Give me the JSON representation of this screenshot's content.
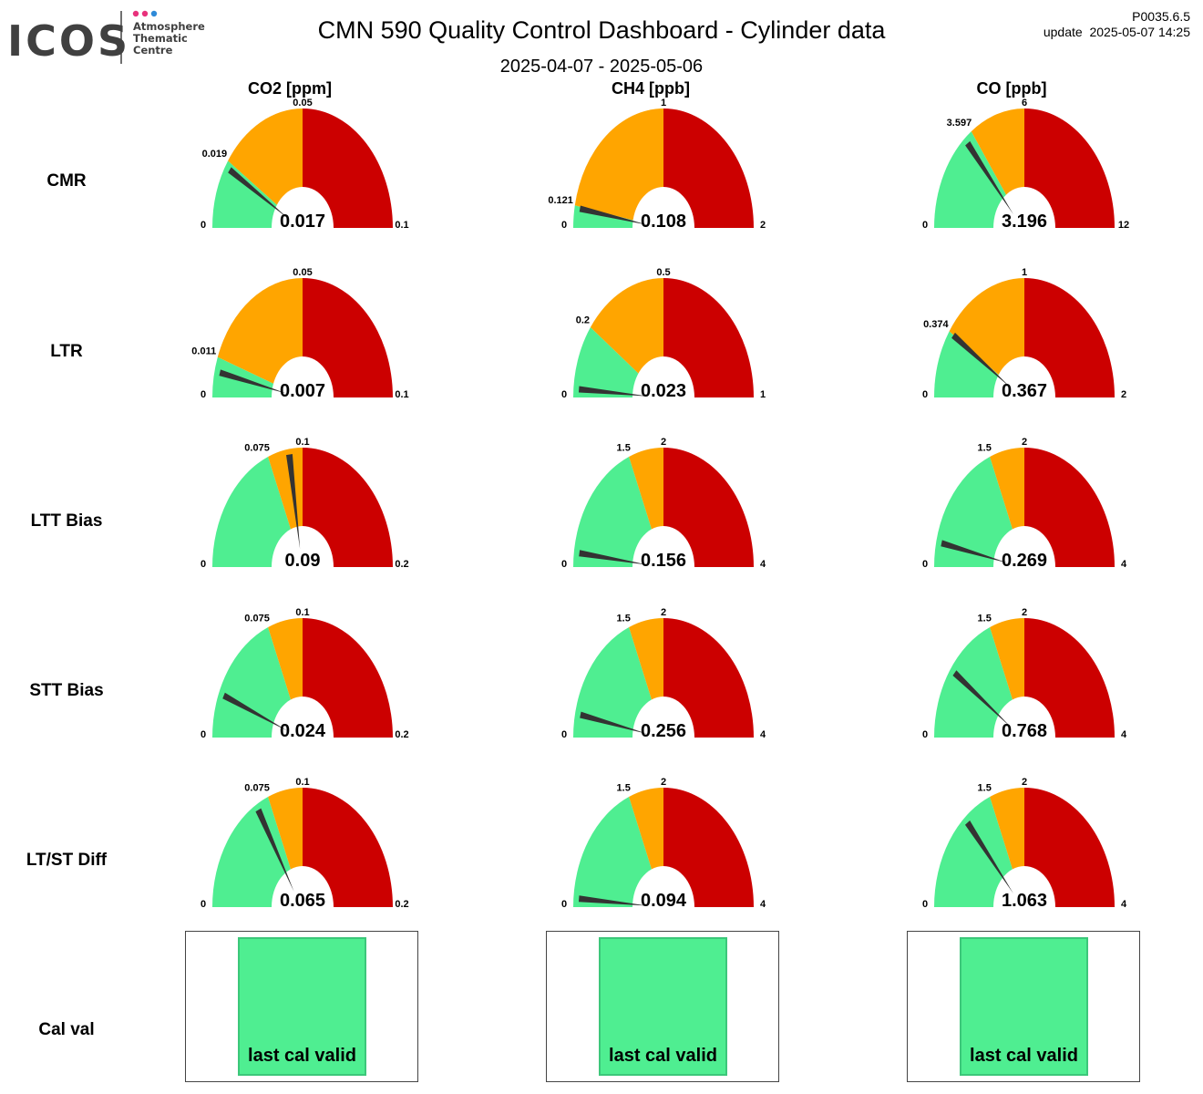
{
  "header": {
    "logo_text": "ICOS",
    "logo_subtitle_lines": [
      "Atmosphere",
      "Thematic",
      "Centre"
    ],
    "logo_dot_colors": [
      "#E8327C",
      "#E8327C",
      "#2F8AD8"
    ],
    "title": "CMN 590 Quality Control Dashboard - Cylinder data",
    "date_range": "2025-04-07 - 2025-05-06",
    "version": "P0035.6.5",
    "update": "update  2025-05-07 14:25"
  },
  "columns": [
    "CO2 [ppm]",
    "CH4 [ppb]",
    "CO [ppb]"
  ],
  "rows": [
    "CMR",
    "LTR",
    "LTT Bias",
    "STT Bias",
    "LT/ST Diff",
    "Cal val"
  ],
  "colors": {
    "green": "#4FEE91",
    "orange": "#FFA500",
    "red": "#CC0000",
    "needle": "#333333"
  },
  "chart_data": {
    "type": "gauge",
    "gauges": [
      {
        "row": "CMR",
        "col": "CO2 [ppm]",
        "min": 0,
        "threshold": 0.019,
        "warn": 0.05,
        "max": 0.1,
        "value": 0.017,
        "labels": {
          "min": "0",
          "threshold": "0.019",
          "warn": "0.05",
          "max": "0.1",
          "value": "0.017"
        }
      },
      {
        "row": "CMR",
        "col": "CH4 [ppb]",
        "min": 0,
        "threshold": 0.121,
        "warn": 1,
        "max": 2,
        "value": 0.108,
        "labels": {
          "min": "0",
          "threshold": "0.121",
          "warn": "1",
          "max": "2",
          "value": "0.108"
        }
      },
      {
        "row": "CMR",
        "col": "CO [ppb]",
        "min": 0,
        "threshold": 3.597,
        "warn": 6,
        "max": 12,
        "value": 3.196,
        "labels": {
          "min": "0",
          "threshold": "3.597",
          "warn": "6",
          "max": "12",
          "value": "3.196"
        }
      },
      {
        "row": "LTR",
        "col": "CO2 [ppm]",
        "min": 0,
        "threshold": 0.011,
        "warn": 0.05,
        "max": 0.1,
        "value": 0.007,
        "labels": {
          "min": "0",
          "threshold": "0.011",
          "warn": "0.05",
          "max": "0.1",
          "value": "0.007"
        }
      },
      {
        "row": "LTR",
        "col": "CH4 [ppb]",
        "min": 0,
        "threshold": 0.2,
        "warn": 0.5,
        "max": 1,
        "value": 0.023,
        "labels": {
          "min": "0",
          "threshold": "0.2",
          "warn": "0.5",
          "max": "1",
          "value": "0.023"
        }
      },
      {
        "row": "LTR",
        "col": "CO [ppb]",
        "min": 0,
        "threshold": 0.374,
        "warn": 1,
        "max": 2,
        "value": 0.367,
        "labels": {
          "min": "0",
          "threshold": "0.374",
          "warn": "1",
          "max": "2",
          "value": "0.367"
        }
      },
      {
        "row": "LTT Bias",
        "col": "CO2 [ppm]",
        "min": 0,
        "threshold": 0.075,
        "warn": 0.1,
        "max": 0.2,
        "value": 0.09,
        "labels": {
          "min": "0",
          "threshold": "0.075",
          "warn": "0.1",
          "max": "0.2",
          "value": "0.09"
        }
      },
      {
        "row": "LTT Bias",
        "col": "CH4 [ppb]",
        "min": 0,
        "threshold": 1.5,
        "warn": 2,
        "max": 4,
        "value": 0.156,
        "labels": {
          "min": "0",
          "threshold": "1.5",
          "warn": "2",
          "max": "4",
          "value": "0.156"
        }
      },
      {
        "row": "LTT Bias",
        "col": "CO [ppb]",
        "min": 0,
        "threshold": 1.5,
        "warn": 2,
        "max": 4,
        "value": 0.269,
        "labels": {
          "min": "0",
          "threshold": "1.5",
          "warn": "2",
          "max": "4",
          "value": "0.269"
        }
      },
      {
        "row": "STT Bias",
        "col": "CO2 [ppm]",
        "min": 0,
        "threshold": 0.075,
        "warn": 0.1,
        "max": 0.2,
        "value": 0.024,
        "labels": {
          "min": "0",
          "threshold": "0.075",
          "warn": "0.1",
          "max": "0.2",
          "value": "0.024"
        }
      },
      {
        "row": "STT Bias",
        "col": "CH4 [ppb]",
        "min": 0,
        "threshold": 1.5,
        "warn": 2,
        "max": 4,
        "value": 0.256,
        "labels": {
          "min": "0",
          "threshold": "1.5",
          "warn": "2",
          "max": "4",
          "value": "0.256"
        }
      },
      {
        "row": "STT Bias",
        "col": "CO [ppb]",
        "min": 0,
        "threshold": 1.5,
        "warn": 2,
        "max": 4,
        "value": 0.768,
        "labels": {
          "min": "0",
          "threshold": "1.5",
          "warn": "2",
          "max": "4",
          "value": "0.768"
        }
      },
      {
        "row": "LT/ST Diff",
        "col": "CO2 [ppm]",
        "min": 0,
        "threshold": 0.075,
        "warn": 0.1,
        "max": 0.2,
        "value": 0.065,
        "labels": {
          "min": "0",
          "threshold": "0.075",
          "warn": "0.1",
          "max": "0.2",
          "value": "0.065"
        }
      },
      {
        "row": "LT/ST Diff",
        "col": "CH4 [ppb]",
        "min": 0,
        "threshold": 1.5,
        "warn": 2,
        "max": 4,
        "value": 0.094,
        "labels": {
          "min": "0",
          "threshold": "1.5",
          "warn": "2",
          "max": "4",
          "value": "0.094"
        }
      },
      {
        "row": "LT/ST Diff",
        "col": "CO [ppb]",
        "min": 0,
        "threshold": 1.5,
        "warn": 2,
        "max": 4,
        "value": 1.063,
        "labels": {
          "min": "0",
          "threshold": "1.5",
          "warn": "2",
          "max": "4",
          "value": "1.063"
        }
      }
    ],
    "cal_status": [
      {
        "col": "CO2 [ppm]",
        "text": "last cal valid",
        "color": "#4FEE91"
      },
      {
        "col": "CH4 [ppb]",
        "text": "last cal valid",
        "color": "#4FEE91"
      },
      {
        "col": "CO [ppb]",
        "text": "last cal valid",
        "color": "#4FEE91"
      }
    ]
  }
}
